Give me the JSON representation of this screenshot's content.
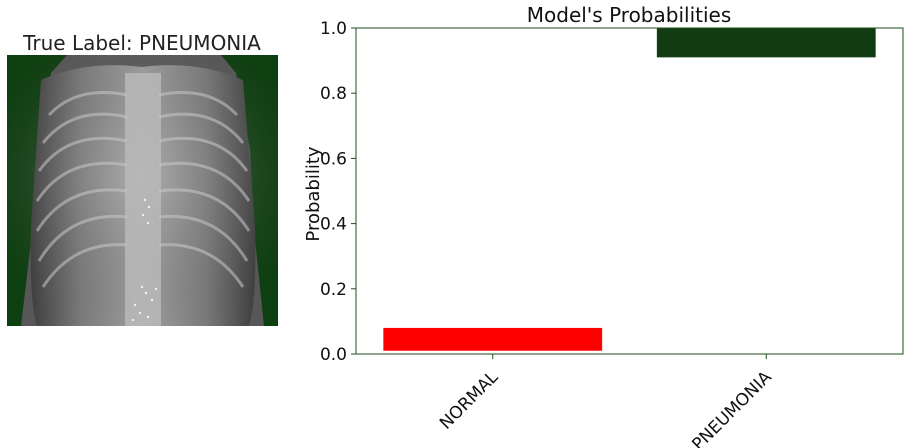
{
  "image_panel": {
    "title": "True Label: PNEUMONIA"
  },
  "colors": {
    "normal_bar": "#ff0000",
    "pneumonia_bar": "#113b11",
    "axes": "#1e4d1e",
    "xray_tint": "#0e3f10"
  },
  "chart_data": {
    "type": "bar",
    "title": "Model's Probabilities",
    "xlabel": "",
    "ylabel": "Probability",
    "categories": [
      "NORMAL",
      "PNEUMONIA"
    ],
    "series": [
      {
        "values": [
          [
            0.01,
            0.08
          ],
          [
            0.91,
            1.0
          ]
        ]
      }
    ],
    "ylim": [
      0,
      1.0
    ],
    "yticks": [
      "0.0",
      "0.2",
      "0.4",
      "0.6",
      "0.8",
      "1.0"
    ],
    "xtick_rotation": 45,
    "grid": false,
    "legend": "none"
  }
}
